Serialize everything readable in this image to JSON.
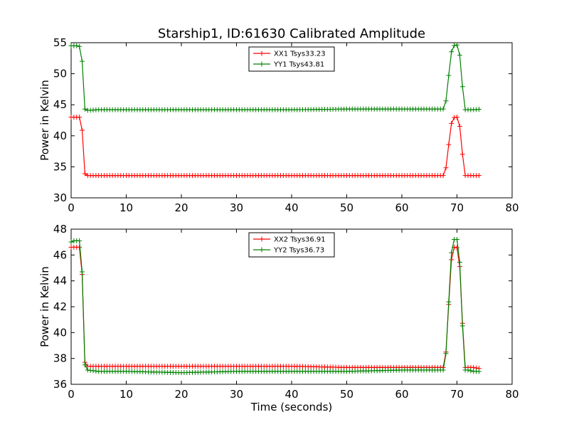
{
  "chart_data": [
    {
      "type": "line",
      "title": "Starship1, ID:61630 Calibrated Amplitude",
      "xlabel": "",
      "ylabel": "Power in Kelvin",
      "xlim": [
        0,
        80
      ],
      "ylim": [
        30,
        55
      ],
      "xticks": [
        "0",
        "10",
        "20",
        "30",
        "40",
        "50",
        "60",
        "70",
        "80"
      ],
      "yticks": [
        "30",
        "35",
        "40",
        "45",
        "50",
        "55"
      ],
      "grid": false,
      "legend_position": "top-center",
      "series": [
        {
          "name": "XX1 Tsys33.23",
          "color": "#ff0000",
          "x": [
            0,
            0.5,
            1,
            1.5,
            2,
            2.5,
            3,
            5,
            10,
            20,
            30,
            40,
            50,
            60,
            67.8,
            68.3,
            68.8,
            69.3,
            69.8,
            70.3,
            70.8,
            71.3,
            72,
            73,
            74.3
          ],
          "values": [
            43.0,
            43.0,
            43.0,
            43.0,
            40.9,
            33.9,
            33.6,
            33.6,
            33.6,
            33.6,
            33.6,
            33.6,
            33.6,
            33.6,
            33.6,
            36.7,
            41.4,
            42.9,
            43.0,
            43.0,
            39.3,
            33.6,
            33.6,
            33.6,
            33.6
          ]
        },
        {
          "name": "YY1 Tsys43.81",
          "color": "#008000",
          "x": [
            0,
            0.5,
            1,
            1.5,
            2,
            2.5,
            3,
            5,
            10,
            20,
            30,
            40,
            50,
            60,
            67.8,
            68.3,
            68.8,
            69.3,
            69.8,
            70.3,
            70.8,
            71.3,
            72,
            73,
            74.3
          ],
          "values": [
            54.5,
            54.5,
            54.5,
            54.4,
            52.0,
            44.3,
            44.1,
            44.2,
            44.2,
            44.2,
            44.2,
            44.2,
            44.3,
            44.3,
            44.3,
            47.6,
            52.9,
            54.5,
            54.6,
            54.7,
            50.4,
            44.2,
            44.2,
            44.2,
            44.3
          ]
        }
      ]
    },
    {
      "type": "line",
      "title": "",
      "xlabel": "Time (seconds)",
      "ylabel": "Power in Kelvin",
      "xlim": [
        0,
        80
      ],
      "ylim": [
        36,
        48
      ],
      "xticks": [
        "0",
        "10",
        "20",
        "30",
        "40",
        "50",
        "60",
        "70",
        "80"
      ],
      "yticks": [
        "36",
        "38",
        "40",
        "42",
        "44",
        "46",
        "48"
      ],
      "grid": false,
      "legend_position": "top-center",
      "series": [
        {
          "name": "XX2 Tsys36.91",
          "color": "#ff0000",
          "x": [
            0,
            0.5,
            1,
            1.5,
            2,
            2.5,
            3,
            5,
            10,
            20,
            30,
            40,
            50,
            60,
            67.8,
            68.3,
            68.8,
            69.3,
            69.8,
            70.3,
            70.8,
            71.3,
            72,
            73,
            74.3
          ],
          "values": [
            46.6,
            46.6,
            46.6,
            46.6,
            44.5,
            37.7,
            37.4,
            37.4,
            37.4,
            37.4,
            37.4,
            37.4,
            37.3,
            37.3,
            37.3,
            40.3,
            45.0,
            46.6,
            46.6,
            46.5,
            43.0,
            37.3,
            37.3,
            37.3,
            37.2
          ]
        },
        {
          "name": "YY2 Tsys36.73",
          "color": "#008000",
          "x": [
            0,
            0.5,
            1,
            1.5,
            2,
            2.5,
            3,
            5,
            10,
            20,
            30,
            40,
            50,
            60,
            67.8,
            68.3,
            68.8,
            69.3,
            69.8,
            70.3,
            70.8,
            71.3,
            72,
            73,
            74.3
          ],
          "values": [
            47.0,
            47.1,
            47.1,
            47.1,
            44.7,
            37.5,
            37.1,
            37.0,
            37.0,
            36.9,
            37.0,
            37.0,
            37.0,
            37.1,
            37.1,
            40.3,
            45.5,
            47.2,
            47.2,
            47.2,
            42.8,
            37.1,
            37.1,
            37.0,
            37.0
          ]
        }
      ]
    }
  ]
}
